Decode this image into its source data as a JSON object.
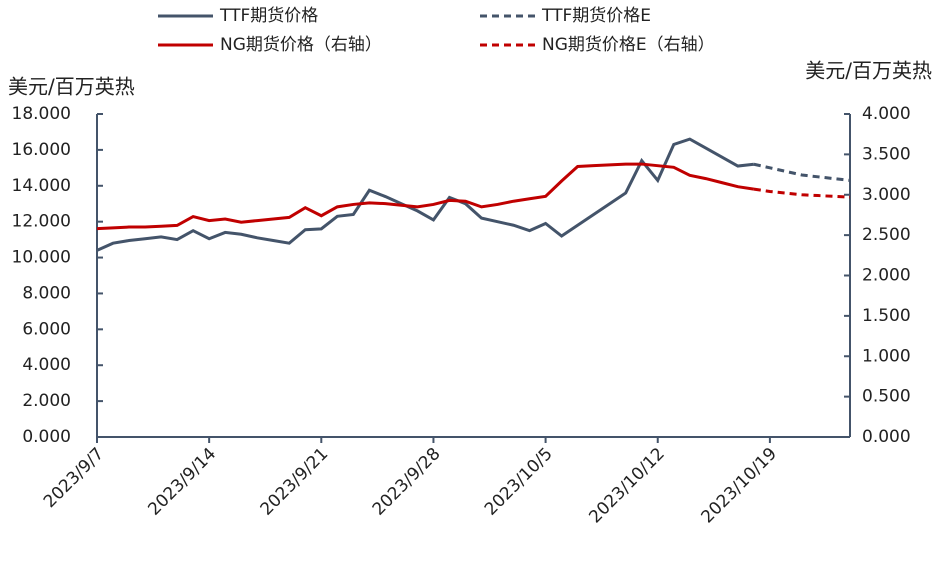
{
  "chart_data": {
    "type": "line",
    "y_label": "美元/百万英热",
    "y2_label": "美元/百万英热",
    "categories": [
      "2023/9/7",
      null,
      null,
      null,
      null,
      null,
      null,
      "2023/9/14",
      null,
      null,
      null,
      null,
      null,
      null,
      "2023/9/21",
      null,
      null,
      null,
      null,
      null,
      null,
      "2023/9/28",
      null,
      null,
      null,
      null,
      null,
      null,
      "2023/10/5",
      null,
      null,
      null,
      null,
      null,
      null,
      "2023/10/12",
      null,
      null,
      null,
      null,
      null,
      null,
      "2023/10/19",
      null,
      null,
      null,
      null,
      null
    ],
    "series": [
      {
        "name": "TTF期货价格",
        "color": "#44546a",
        "style": "solid",
        "axis": "y",
        "values": [
          10.4,
          10.8,
          10.95,
          11.05,
          11.15,
          11.0,
          11.5,
          11.05,
          11.4,
          11.3,
          11.1,
          10.95,
          10.8,
          11.55,
          11.6,
          12.3,
          12.4,
          13.75,
          13.4,
          13.0,
          12.6,
          12.1,
          13.35,
          13.0,
          12.2,
          12.0,
          11.8,
          11.5,
          11.9,
          11.2,
          11.8,
          12.4,
          13.0,
          13.6,
          15.4,
          14.3,
          16.3,
          16.6,
          16.1,
          15.6,
          15.1,
          15.2,
          null,
          null,
          null,
          null,
          null,
          null
        ]
      },
      {
        "name": "TTF期货价格E",
        "color": "#44546a",
        "style": "dashed",
        "axis": "y",
        "values": [
          null,
          null,
          null,
          null,
          null,
          null,
          null,
          null,
          null,
          null,
          null,
          null,
          null,
          null,
          null,
          null,
          null,
          null,
          null,
          null,
          null,
          null,
          null,
          null,
          null,
          null,
          null,
          null,
          null,
          null,
          null,
          null,
          null,
          null,
          null,
          null,
          null,
          null,
          null,
          null,
          null,
          15.2,
          15.0,
          14.8,
          14.6,
          14.5,
          14.4,
          14.3
        ]
      },
      {
        "name": "NG期货价格（右轴）",
        "color": "#c00000",
        "style": "solid",
        "axis": "y2",
        "values": [
          2.58,
          2.59,
          2.6,
          2.6,
          2.61,
          2.62,
          2.73,
          2.68,
          2.7,
          2.66,
          2.68,
          2.7,
          2.72,
          2.84,
          2.74,
          2.85,
          2.88,
          2.9,
          2.89,
          2.87,
          2.85,
          2.88,
          2.93,
          2.92,
          2.85,
          2.88,
          2.92,
          2.95,
          2.98,
          3.17,
          3.35,
          3.36,
          3.37,
          3.38,
          3.38,
          3.36,
          3.34,
          3.24,
          3.2,
          3.15,
          3.1,
          3.07,
          null,
          null,
          null,
          null,
          null,
          null
        ]
      },
      {
        "name": "NG期货价格E（右轴）",
        "color": "#c00000",
        "style": "dashed",
        "axis": "y2",
        "values": [
          null,
          null,
          null,
          null,
          null,
          null,
          null,
          null,
          null,
          null,
          null,
          null,
          null,
          null,
          null,
          null,
          null,
          null,
          null,
          null,
          null,
          null,
          null,
          null,
          null,
          null,
          null,
          null,
          null,
          null,
          null,
          null,
          null,
          null,
          null,
          null,
          null,
          null,
          null,
          null,
          null,
          3.07,
          3.04,
          3.02,
          3.0,
          2.99,
          2.98,
          2.97
        ]
      }
    ],
    "ylim": [
      0,
      18
    ],
    "yticks": [
      {
        "value": 0,
        "label": "0.000"
      },
      {
        "value": 2,
        "label": "2.000"
      },
      {
        "value": 4,
        "label": "4.000"
      },
      {
        "value": 6,
        "label": "6.000"
      },
      {
        "value": 8,
        "label": "8.000"
      },
      {
        "value": 10,
        "label": "10.000"
      },
      {
        "value": 12,
        "label": "12.000"
      },
      {
        "value": 14,
        "label": "14.000"
      },
      {
        "value": 16,
        "label": "16.000"
      },
      {
        "value": 18,
        "label": "18.000"
      }
    ],
    "y2lim": [
      0,
      4
    ],
    "y2ticks": [
      {
        "value": 0,
        "label": "0.000"
      },
      {
        "value": 0.5,
        "label": "0.500"
      },
      {
        "value": 1,
        "label": "1.000"
      },
      {
        "value": 1.5,
        "label": "1.500"
      },
      {
        "value": 2,
        "label": "2.000"
      },
      {
        "value": 2.5,
        "label": "2.500"
      },
      {
        "value": 3,
        "label": "3.000"
      },
      {
        "value": 3.5,
        "label": "3.500"
      },
      {
        "value": 4,
        "label": "4.000"
      }
    ],
    "grid": false,
    "legend": "top"
  }
}
